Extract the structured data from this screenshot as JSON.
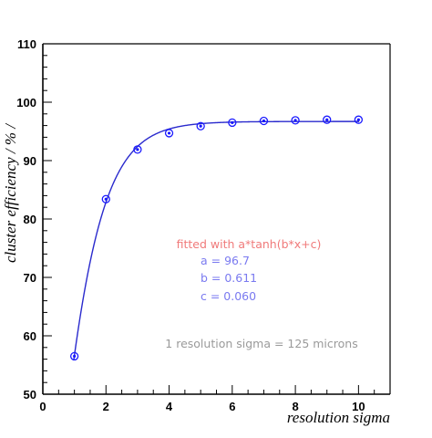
{
  "chart_data": {
    "type": "scatter",
    "xlabel": "resolution sigma",
    "ylabel": "cluster efficiency / % /",
    "xlim": [
      0,
      11
    ],
    "ylim": [
      50,
      110
    ],
    "x_ticks": [
      0,
      2,
      4,
      6,
      8,
      10
    ],
    "y_ticks": [
      50,
      60,
      70,
      80,
      90,
      100,
      110
    ],
    "grid": false,
    "series": [
      {
        "x": [
          1,
          2,
          3,
          4,
          5,
          6,
          7,
          8,
          9,
          10
        ],
        "y": [
          56.5,
          83.4,
          91.9,
          94.7,
          95.9,
          96.5,
          96.8,
          96.9,
          97.0,
          97.0
        ]
      }
    ],
    "fit": {
      "formula": "a*tanh(b*x+c)",
      "a": 96.7,
      "b": 0.611,
      "c": 0.06
    },
    "annotations": {
      "fit_label": "fitted with a*tanh(b*x+c)",
      "a_label": "a = 96.7",
      "b_label": "b = 0.611",
      "c_label": "c = 0.060",
      "note": "1 resolution sigma = 125 microns"
    },
    "colors": {
      "points": "#1a1aff",
      "fit_curve": "#2a2acd",
      "fit_label": "#f07a7a",
      "params": "#7a7af0",
      "note": "#9a9a9a",
      "axes": "#000000"
    }
  }
}
